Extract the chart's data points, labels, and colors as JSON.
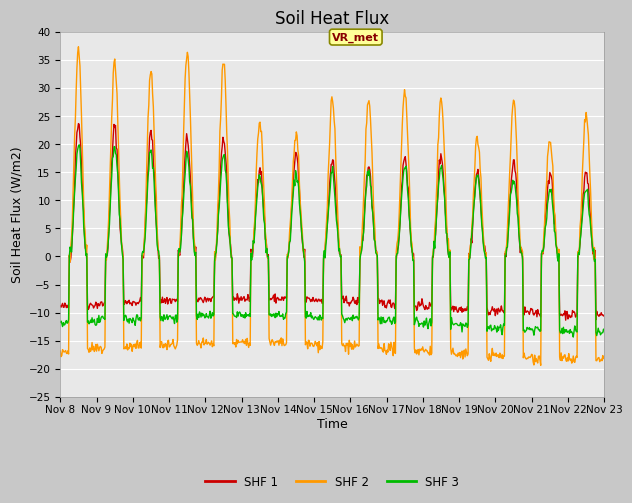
{
  "title": "Soil Heat Flux",
  "xlabel": "Time",
  "ylabel": "Soil Heat Flux (W/m2)",
  "xlim": [
    0,
    15
  ],
  "ylim": [
    -25,
    40
  ],
  "yticks": [
    -25,
    -20,
    -15,
    -10,
    -5,
    0,
    5,
    10,
    15,
    20,
    25,
    30,
    35,
    40
  ],
  "xtick_labels": [
    "Nov 8",
    "Nov 9",
    "Nov 10",
    "Nov 11",
    "Nov 12",
    "Nov 13",
    "Nov 14",
    "Nov 15",
    "Nov 16",
    "Nov 17",
    "Nov 18",
    "Nov 19",
    "Nov 20",
    "Nov 21",
    "Nov 22",
    "Nov 23"
  ],
  "xtick_positions": [
    0,
    1,
    2,
    3,
    4,
    5,
    6,
    7,
    8,
    9,
    10,
    11,
    12,
    13,
    14,
    15
  ],
  "line_colors": [
    "#cc0000",
    "#ff9900",
    "#00bb00"
  ],
  "legend_labels": [
    "SHF 1",
    "SHF 2",
    "SHF 3"
  ],
  "annotation_text": "VR_met",
  "fig_bg_color": "#c8c8c8",
  "plot_bg_color": "#e8e8e8",
  "linewidth": 1.0,
  "title_fontsize": 12,
  "axis_label_fontsize": 9,
  "tick_fontsize": 7.5,
  "shf1_day_amps": [
    24,
    23,
    22,
    21,
    21,
    16,
    18,
    17,
    16,
    18,
    18,
    15,
    17,
    15,
    15
  ],
  "shf2_day_amps": [
    37,
    35,
    33,
    36,
    35,
    24,
    22,
    28,
    28,
    30,
    28,
    21,
    28,
    21,
    25
  ],
  "shf3_day_amps": [
    20,
    20,
    19,
    18,
    18,
    14,
    15,
    15,
    15,
    16,
    16,
    14,
    14,
    12,
    12
  ],
  "shf1_night": -9,
  "shf2_night": -17,
  "shf3_night": -12
}
